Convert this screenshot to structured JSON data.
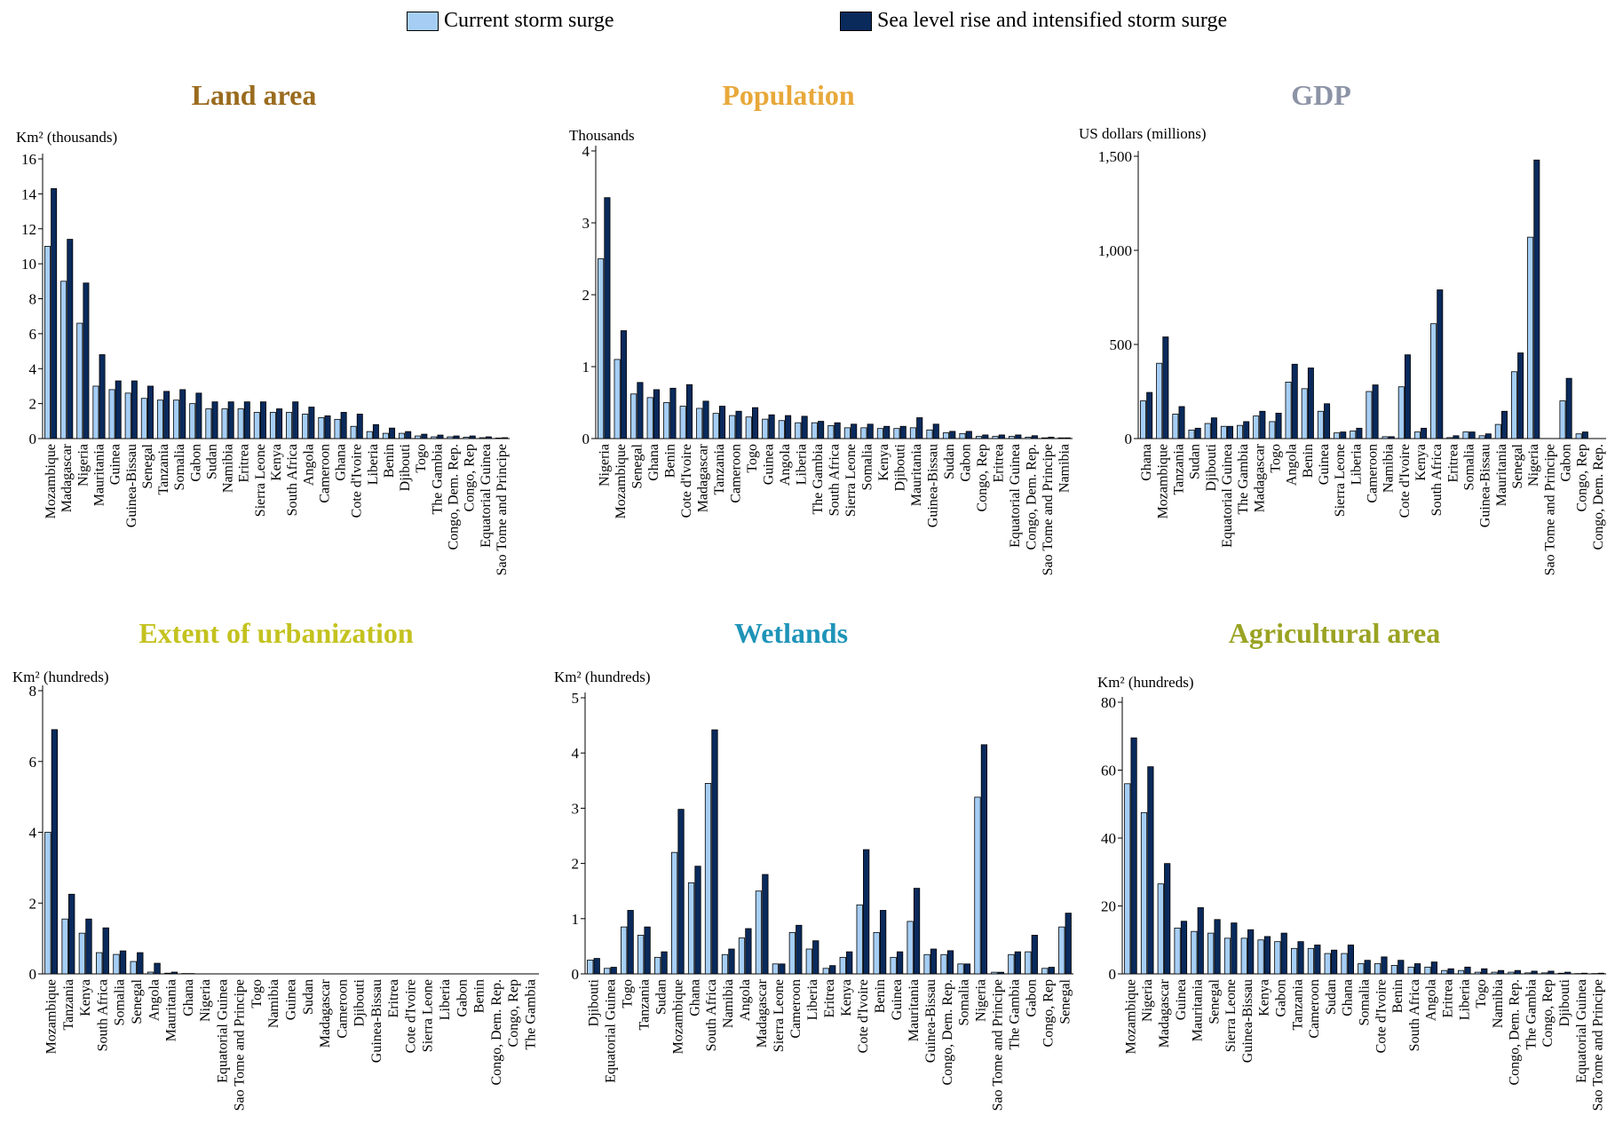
{
  "legend": {
    "current": {
      "label": "Current storm surge",
      "color": "#a6cef5"
    },
    "future": {
      "label": "Sea level rise and intensified storm surge",
      "color": "#0a2a5c"
    }
  },
  "chart_data": [
    {
      "type": "bar",
      "title": "Land area",
      "title_color": "#9a6b1e",
      "ylabel": "Km² (thousands)",
      "ylim": [
        0,
        16
      ],
      "yticks": [
        0,
        2,
        4,
        6,
        8,
        10,
        12,
        14,
        16
      ],
      "categories": [
        "Mozambique",
        "Madagascar",
        "Nigeria",
        "Mauritania",
        "Guinea",
        "Guinea-Bissau",
        "Senegal",
        "Tanzania",
        "Somalia",
        "Gabon",
        "Sudan",
        "Namibia",
        "Eritrea",
        "Sierra Leone",
        "Kenya",
        "South Africa",
        "Angola",
        "Cameroon",
        "Ghana",
        "Cote d'Ivoire",
        "Liberia",
        "Benin",
        "Djibouti",
        "Togo",
        "The Gambia",
        "Congo, Dem. Rep.",
        "Congo, Rep",
        "Equatorial Guinea",
        "Sao Tome and Principe"
      ],
      "series": [
        {
          "name": "Current storm surge",
          "values": [
            11.0,
            9.0,
            6.6,
            3.0,
            2.8,
            2.6,
            2.3,
            2.2,
            2.2,
            2.0,
            1.7,
            1.7,
            1.7,
            1.5,
            1.5,
            1.5,
            1.4,
            1.2,
            1.1,
            0.7,
            0.4,
            0.3,
            0.3,
            0.15,
            0.1,
            0.1,
            0.08,
            0.05,
            0.03
          ]
        },
        {
          "name": "Sea level rise and intensified storm surge",
          "values": [
            14.3,
            11.4,
            8.9,
            4.8,
            3.3,
            3.3,
            3.0,
            2.7,
            2.8,
            2.6,
            2.1,
            2.1,
            2.1,
            2.1,
            1.7,
            2.1,
            1.8,
            1.3,
            1.5,
            1.4,
            0.8,
            0.6,
            0.4,
            0.25,
            0.2,
            0.15,
            0.15,
            0.1,
            0.05
          ]
        }
      ]
    },
    {
      "type": "bar",
      "title": "Population",
      "title_color": "#e8a83a",
      "ylabel": "Thousands",
      "ylim": [
        0,
        4
      ],
      "yticks": [
        0,
        1,
        2,
        3,
        4
      ],
      "categories": [
        "Nigeria",
        "Mozambique",
        "Senegal",
        "Ghana",
        "Benin",
        "Cote d'Ivoire",
        "Madagascar",
        "Tanzania",
        "Cameroon",
        "Togo",
        "Guinea",
        "Angola",
        "Liberia",
        "The Gambia",
        "South Africa",
        "Sierra Leone",
        "Somalia",
        "Kenya",
        "Djibouti",
        "Mauritania",
        "Guinea-Bissau",
        "Sudan",
        "Gabon",
        "Congo, Rep",
        "Eritrea",
        "Equatorial Guinea",
        "Congo, Dem. Rep.",
        "Sao Tome and Principe",
        "Namibia"
      ],
      "series": [
        {
          "name": "Current storm surge",
          "values": [
            2.5,
            1.1,
            0.62,
            0.57,
            0.5,
            0.45,
            0.42,
            0.35,
            0.32,
            0.3,
            0.27,
            0.25,
            0.22,
            0.22,
            0.18,
            0.15,
            0.15,
            0.14,
            0.14,
            0.15,
            0.12,
            0.08,
            0.07,
            0.03,
            0.03,
            0.03,
            0.02,
            0.01,
            0.01
          ]
        },
        {
          "name": "Sea level rise and intensified storm surge",
          "values": [
            3.35,
            1.5,
            0.78,
            0.68,
            0.7,
            0.75,
            0.52,
            0.45,
            0.38,
            0.43,
            0.33,
            0.32,
            0.31,
            0.24,
            0.22,
            0.2,
            0.2,
            0.17,
            0.17,
            0.29,
            0.2,
            0.1,
            0.1,
            0.05,
            0.05,
            0.05,
            0.04,
            0.02,
            0.01
          ]
        }
      ]
    },
    {
      "type": "bar",
      "title": "GDP",
      "title_color": "#8c93a6",
      "ylabel": "US dollars (millions)",
      "ylim": [
        0,
        1500
      ],
      "yticks": [
        0,
        500,
        1000,
        1500
      ],
      "ytick_labels": [
        "0",
        "500",
        "1,000",
        "1,500"
      ],
      "categories": [
        "Ghana",
        "Mozambique",
        "Tanzania",
        "Sudan",
        "Djibouti",
        "Equatorial Guinea",
        "The Gambia",
        "Madagascar",
        "Togo",
        "Angola",
        "Benin",
        "Guinea",
        "Sierra Leone",
        "Liberia",
        "Cameroon",
        "Namibia",
        "Cote d'Ivoire",
        "Kenya",
        "South Africa",
        "Eritrea",
        "Somalia",
        "Guinea-Bissau",
        "Mauritania",
        "Senegal",
        "Nigeria",
        "Sao Tome and Principe",
        "Gabon",
        "Congo, Rep",
        "Congo, Dem. Rep."
      ],
      "series": [
        {
          "name": "Current storm surge",
          "values": [
            200,
            400,
            130,
            45,
            80,
            65,
            70,
            120,
            90,
            300,
            265,
            145,
            30,
            40,
            250,
            10,
            275,
            35,
            610,
            5,
            35,
            15,
            75,
            355,
            1070,
            0,
            200,
            25,
            0
          ]
        },
        {
          "name": "Sea level rise and intensified storm surge",
          "values": [
            245,
            540,
            170,
            55,
            110,
            65,
            90,
            145,
            135,
            395,
            375,
            185,
            35,
            55,
            285,
            10,
            445,
            55,
            790,
            15,
            35,
            25,
            145,
            455,
            1480,
            0,
            320,
            35,
            0
          ]
        }
      ]
    },
    {
      "type": "bar",
      "title": "Extent of urbanization",
      "title_color": "#c4c21e",
      "ylabel": "Km² (hundreds)",
      "ylim": [
        0,
        8
      ],
      "yticks": [
        0,
        2,
        4,
        6,
        8
      ],
      "categories": [
        "Mozambique",
        "Tanzania",
        "Kenya",
        "South Africa",
        "Somalia",
        "Senegal",
        "Angola",
        "Mauritania",
        "Ghana",
        "Nigeria",
        "Equatorial Guinea",
        "Sao Tome and Principe",
        "Togo",
        "Namibia",
        "Guinea",
        "Sudan",
        "Madagascar",
        "Cameroon",
        "Djibouti",
        "Guinea-Bissau",
        "Eritrea",
        "Cote d'Ivoire",
        "Sierra Leone",
        "Liberia",
        "Gabon",
        "Benin",
        "Congo, Dem. Rep.",
        "Congo, Rep",
        "The Gambia"
      ],
      "series": [
        {
          "name": "Current storm surge",
          "values": [
            4.0,
            1.55,
            1.15,
            0.6,
            0.55,
            0.35,
            0.05,
            0.02,
            0.01,
            0,
            0,
            0,
            0,
            0,
            0,
            0,
            0,
            0,
            0,
            0,
            0,
            0,
            0,
            0,
            0,
            0,
            0,
            0,
            0
          ]
        },
        {
          "name": "Sea level rise and intensified storm surge",
          "values": [
            6.9,
            2.25,
            1.55,
            1.3,
            0.65,
            0.6,
            0.3,
            0.05,
            0.01,
            0,
            0,
            0,
            0,
            0,
            0,
            0,
            0,
            0,
            0,
            0,
            0,
            0,
            0,
            0,
            0,
            0,
            0,
            0,
            0
          ]
        }
      ]
    },
    {
      "type": "bar",
      "title": "Wetlands",
      "title_color": "#1e94b8",
      "ylabel": "Km² (hundreds)",
      "ylim": [
        0,
        5
      ],
      "yticks": [
        0,
        1,
        2,
        3,
        4,
        5
      ],
      "categories": [
        "Djibouti",
        "Equatorial Guinea",
        "Togo",
        "Tanzania",
        "Sudan",
        "Mozambique",
        "Ghana",
        "South Africa",
        "Namibia",
        "Angola",
        "Madagascar",
        "Sierra Leone",
        "Cameroon",
        "Liberia",
        "Eritrea",
        "Kenya",
        "Cote d'Ivoire",
        "Benin",
        "Guinea",
        "Mauritania",
        "Guinea-Bissau",
        "Congo, Dem. Rep.",
        "Somalia",
        "Nigeria",
        "Sao Tome and Principe",
        "The Gambia",
        "Gabon",
        "Congo, Rep",
        "Senegal"
      ],
      "series": [
        {
          "name": "Current storm surge",
          "values": [
            0.25,
            0.1,
            0.85,
            0.7,
            0.3,
            2.2,
            1.65,
            3.45,
            0.35,
            0.65,
            1.5,
            0.18,
            0.75,
            0.45,
            0.1,
            0.3,
            1.25,
            0.75,
            0.3,
            0.95,
            0.35,
            0.35,
            0.18,
            3.2,
            0.03,
            0.35,
            0.4,
            0.1,
            0.85
          ]
        },
        {
          "name": "Sea level rise and intensified storm surge",
          "values": [
            0.28,
            0.12,
            1.15,
            0.85,
            0.4,
            2.98,
            1.95,
            4.42,
            0.45,
            0.82,
            1.8,
            0.18,
            0.88,
            0.6,
            0.15,
            0.4,
            2.25,
            1.15,
            0.4,
            1.55,
            0.45,
            0.42,
            0.18,
            4.15,
            0.03,
            0.4,
            0.7,
            0.12,
            1.1
          ]
        }
      ]
    },
    {
      "type": "bar",
      "title": "Agricultural area",
      "title_color": "#9aa322",
      "ylabel": "Km² (hundreds)",
      "ylim": [
        0,
        80
      ],
      "yticks": [
        0,
        20,
        40,
        60,
        80
      ],
      "categories": [
        "Mozambique",
        "Nigeria",
        "Madagascar",
        "Guinea",
        "Mauritania",
        "Senegal",
        "Sierra Leone",
        "Guinea-Bissau",
        "Kenya",
        "Gabon",
        "Tanzania",
        "Cameroon",
        "Sudan",
        "Ghana",
        "Somalia",
        "Cote d'Ivoire",
        "Benin",
        "South Africa",
        "Angola",
        "Eritrea",
        "Liberia",
        "Togo",
        "Namibia",
        "Congo, Dem. Rep.",
        "The Gambia",
        "Congo, Rep",
        "Djibouti",
        "Equatorial Guinea",
        "Sao Tome and Principe"
      ],
      "series": [
        {
          "name": "Current storm surge",
          "values": [
            56,
            47.5,
            26.5,
            13.5,
            12.5,
            12,
            10.5,
            10.5,
            10,
            9.5,
            7.5,
            7.5,
            6,
            6,
            3,
            3,
            2.5,
            2,
            2,
            1,
            1,
            0.5,
            0.5,
            0.5,
            0.3,
            0.3,
            0.2,
            0.1,
            0.1
          ]
        },
        {
          "name": "Sea level rise and intensified storm surge",
          "values": [
            69.5,
            61,
            32.5,
            15.5,
            19.5,
            16,
            15,
            13,
            11,
            12,
            9.5,
            8.5,
            7,
            8.5,
            4,
            5,
            4,
            3,
            3.5,
            1.5,
            2,
            1.5,
            1,
            1,
            0.8,
            0.8,
            0.5,
            0.2,
            0.2
          ]
        }
      ]
    }
  ]
}
